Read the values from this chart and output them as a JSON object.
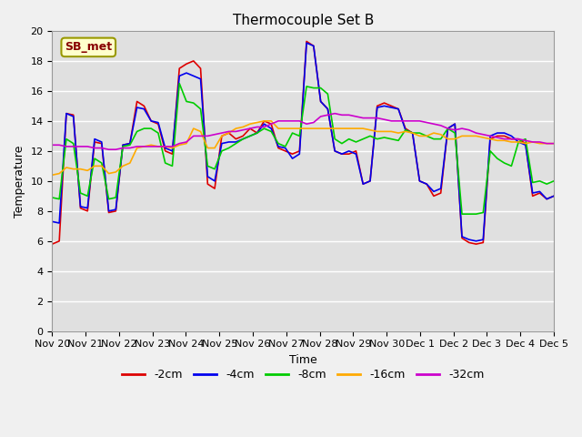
{
  "title": "Thermocouple Set B",
  "xlabel": "Time",
  "ylabel": "Temperature",
  "annotation": "SB_met",
  "ylim": [
    0,
    20
  ],
  "xlim": [
    0,
    15
  ],
  "xtick_labels": [
    "Nov 20",
    "Nov 21",
    "Nov 22",
    "Nov 23",
    "Nov 24",
    "Nov 25",
    "Nov 26",
    "Nov 27",
    "Nov 28",
    "Nov 29",
    "Nov 30",
    "Dec 1",
    "Dec 2",
    "Dec 3",
    "Dec 4",
    "Dec 5"
  ],
  "colors": {
    "-2cm": "#dd0000",
    "-4cm": "#0000ee",
    "-8cm": "#00cc00",
    "-16cm": "#ffaa00",
    "-32cm": "#cc00cc"
  },
  "series": {
    "-2cm": [
      5.8,
      6.0,
      14.5,
      14.4,
      8.2,
      8.0,
      12.6,
      12.5,
      7.9,
      8.0,
      12.4,
      12.5,
      15.3,
      15.0,
      14.0,
      13.8,
      12.0,
      11.8,
      17.5,
      17.8,
      18.0,
      17.5,
      9.8,
      9.5,
      13.0,
      13.2,
      12.8,
      13.0,
      13.5,
      13.2,
      14.0,
      13.8,
      12.2,
      12.0,
      11.8,
      12.0,
      19.3,
      19.0,
      15.3,
      14.8,
      12.0,
      11.8,
      11.8,
      12.0,
      9.8,
      10.0,
      15.0,
      15.2,
      15.0,
      14.8,
      13.5,
      13.2,
      10.0,
      9.8,
      9.0,
      9.2,
      13.5,
      13.8,
      6.2,
      5.9,
      5.8,
      5.9,
      12.8,
      13.0,
      13.0,
      12.8,
      12.8,
      12.5,
      9.0,
      9.2,
      8.8,
      9.0
    ],
    "-4cm": [
      7.3,
      7.2,
      14.5,
      14.3,
      8.3,
      8.2,
      12.8,
      12.6,
      8.0,
      8.1,
      12.4,
      12.5,
      14.9,
      14.8,
      14.0,
      13.9,
      12.2,
      12.0,
      17.0,
      17.2,
      17.0,
      16.8,
      10.3,
      10.0,
      12.5,
      12.6,
      12.6,
      12.8,
      13.0,
      13.2,
      13.8,
      13.5,
      12.3,
      12.2,
      11.5,
      11.8,
      19.2,
      19.0,
      15.3,
      14.8,
      12.0,
      11.8,
      12.0,
      11.8,
      9.8,
      10.0,
      14.9,
      15.0,
      14.9,
      14.8,
      13.4,
      13.2,
      10.0,
      9.8,
      9.3,
      9.5,
      13.5,
      13.8,
      6.3,
      6.1,
      6.0,
      6.1,
      13.0,
      13.2,
      13.2,
      13.0,
      12.6,
      12.4,
      9.2,
      9.3,
      8.8,
      9.0
    ],
    "-8cm": [
      8.9,
      8.8,
      12.8,
      12.5,
      9.2,
      9.0,
      11.5,
      11.2,
      8.8,
      8.9,
      12.3,
      12.4,
      13.3,
      13.5,
      13.5,
      13.2,
      11.2,
      11.0,
      16.5,
      15.3,
      15.2,
      14.8,
      11.0,
      10.8,
      12.0,
      12.2,
      12.5,
      12.8,
      13.0,
      13.2,
      13.5,
      13.3,
      12.5,
      12.3,
      13.2,
      13.0,
      16.3,
      16.2,
      16.2,
      15.8,
      12.8,
      12.5,
      12.8,
      12.6,
      12.8,
      13.0,
      12.8,
      12.9,
      12.8,
      12.7,
      13.4,
      13.2,
      13.2,
      13.0,
      12.8,
      12.8,
      13.5,
      13.2,
      7.8,
      7.8,
      7.8,
      7.9,
      12.0,
      11.5,
      11.2,
      11.0,
      12.6,
      12.8,
      9.9,
      10.0,
      9.8,
      10.0
    ],
    "-16cm": [
      10.4,
      10.5,
      10.9,
      10.8,
      10.8,
      10.7,
      11.0,
      11.0,
      10.5,
      10.6,
      11.0,
      11.2,
      12.2,
      12.3,
      12.4,
      12.3,
      12.3,
      12.2,
      12.4,
      12.5,
      13.5,
      13.3,
      12.2,
      12.2,
      13.0,
      13.2,
      13.5,
      13.6,
      13.8,
      13.9,
      14.0,
      14.0,
      13.5,
      13.5,
      13.5,
      13.5,
      13.5,
      13.5,
      13.5,
      13.5,
      13.5,
      13.5,
      13.5,
      13.5,
      13.5,
      13.4,
      13.3,
      13.3,
      13.3,
      13.2,
      13.3,
      13.2,
      13.0,
      13.0,
      13.2,
      13.1,
      12.8,
      12.8,
      13.0,
      13.0,
      13.0,
      12.9,
      12.8,
      12.7,
      12.7,
      12.6,
      12.6,
      12.5,
      12.6,
      12.5,
      12.5,
      12.5
    ],
    "-32cm": [
      12.4,
      12.4,
      12.3,
      12.3,
      12.3,
      12.3,
      12.2,
      12.2,
      12.1,
      12.1,
      12.2,
      12.2,
      12.3,
      12.3,
      12.3,
      12.3,
      12.3,
      12.3,
      12.5,
      12.6,
      13.0,
      13.0,
      13.0,
      13.1,
      13.2,
      13.3,
      13.3,
      13.4,
      13.5,
      13.6,
      13.6,
      13.8,
      14.0,
      14.0,
      14.0,
      14.0,
      13.8,
      13.9,
      14.3,
      14.4,
      14.5,
      14.4,
      14.4,
      14.3,
      14.2,
      14.2,
      14.2,
      14.1,
      14.0,
      14.0,
      14.0,
      14.0,
      14.0,
      13.9,
      13.8,
      13.7,
      13.5,
      13.4,
      13.5,
      13.4,
      13.2,
      13.1,
      13.0,
      12.9,
      12.8,
      12.8,
      12.8,
      12.7,
      12.6,
      12.6,
      12.5,
      12.5
    ]
  },
  "plot_bg": "#e0e0e0",
  "grid_color": "#ffffff",
  "title_fontsize": 11,
  "tick_fontsize": 8,
  "axis_label_fontsize": 9,
  "legend_fontsize": 9,
  "linewidth": 1.2
}
